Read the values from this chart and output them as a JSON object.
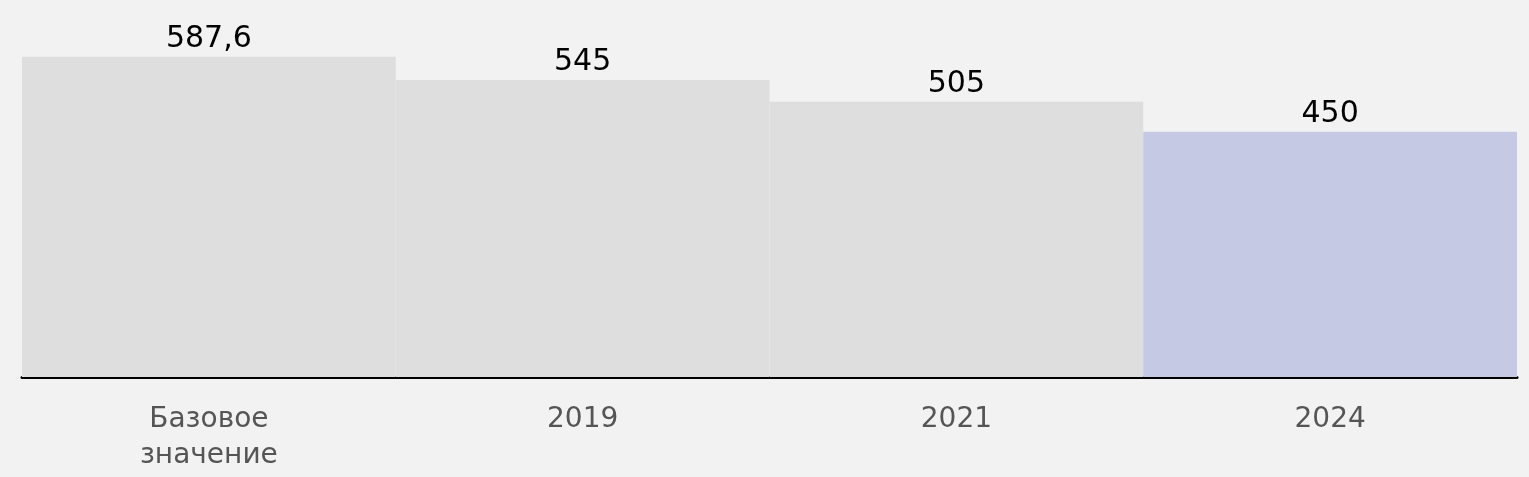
{
  "chart_data": {
    "type": "bar",
    "categories": [
      "Базовое значение",
      "2019",
      "2021",
      "2024"
    ],
    "values": [
      587.6,
      545,
      505,
      450
    ],
    "colors": [
      "#dedede",
      "#dedede",
      "#dedede",
      "#c5c9e4"
    ],
    "value_labels": [
      "587,6",
      "545",
      "505",
      "450"
    ],
    "grid": false
  }
}
